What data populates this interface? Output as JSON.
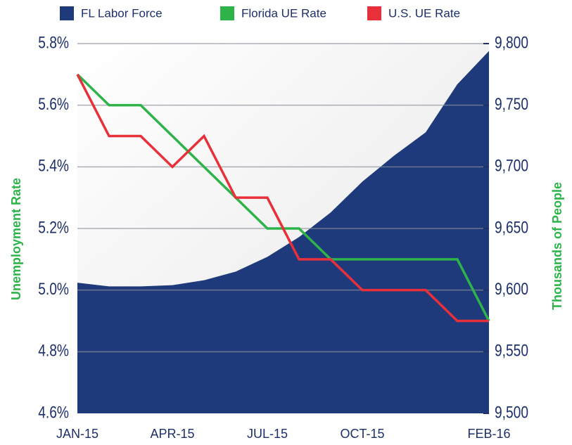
{
  "chart_data": {
    "type": "line",
    "categories": [
      "JAN-15",
      null,
      null,
      "APR-15",
      null,
      null,
      "JUL-15",
      null,
      null,
      "OCT-15",
      null,
      null,
      null,
      "FEB-16"
    ],
    "series": [
      {
        "name": "FL Labor Force",
        "color": "#1f3a7a",
        "axis": "y2",
        "type": "area",
        "values": [
          9606,
          9603,
          9603,
          9604,
          9608,
          9615,
          9627,
          9643,
          9663,
          9688,
          9709,
          9728,
          9767,
          9794
        ]
      },
      {
        "name": "Florida UE Rate",
        "color": "#2db34a",
        "values": [
          5.7,
          5.6,
          5.6,
          5.5,
          5.4,
          5.3,
          5.2,
          5.2,
          5.1,
          5.1,
          5.1,
          5.1,
          5.1,
          4.9
        ]
      },
      {
        "name": "U.S. UE Rate",
        "color": "#e8303a",
        "values": [
          5.7,
          5.5,
          5.5,
          5.4,
          5.5,
          5.3,
          5.3,
          5.1,
          5.1,
          5.0,
          5.0,
          5.0,
          4.9,
          4.9
        ]
      }
    ],
    "ylabel": "Unemployment Rate",
    "y2label": "Thousands of People",
    "ylim": [
      4.6,
      5.8
    ],
    "yticks": [
      {
        "value": 4.6,
        "label": "4.6%"
      },
      {
        "value": 4.8,
        "label": "4.8%"
      },
      {
        "value": 5.0,
        "label": "5.0%"
      },
      {
        "value": 5.2,
        "label": "5.2%"
      },
      {
        "value": 5.4,
        "label": "5.4%"
      },
      {
        "value": 5.6,
        "label": "5.6%"
      },
      {
        "value": 5.8,
        "label": "5.8%"
      }
    ],
    "y2lim": [
      9500,
      9800
    ],
    "y2ticks": [
      {
        "value": 9500,
        "label": "9,500"
      },
      {
        "value": 9550,
        "label": "9,550"
      },
      {
        "value": 9600,
        "label": "9,600"
      },
      {
        "value": 9650,
        "label": "9,650"
      },
      {
        "value": 9700,
        "label": "9,700"
      },
      {
        "value": 9750,
        "label": "9,750"
      },
      {
        "value": 9800,
        "label": "9,800"
      }
    ],
    "grid": true,
    "legend": "top"
  }
}
